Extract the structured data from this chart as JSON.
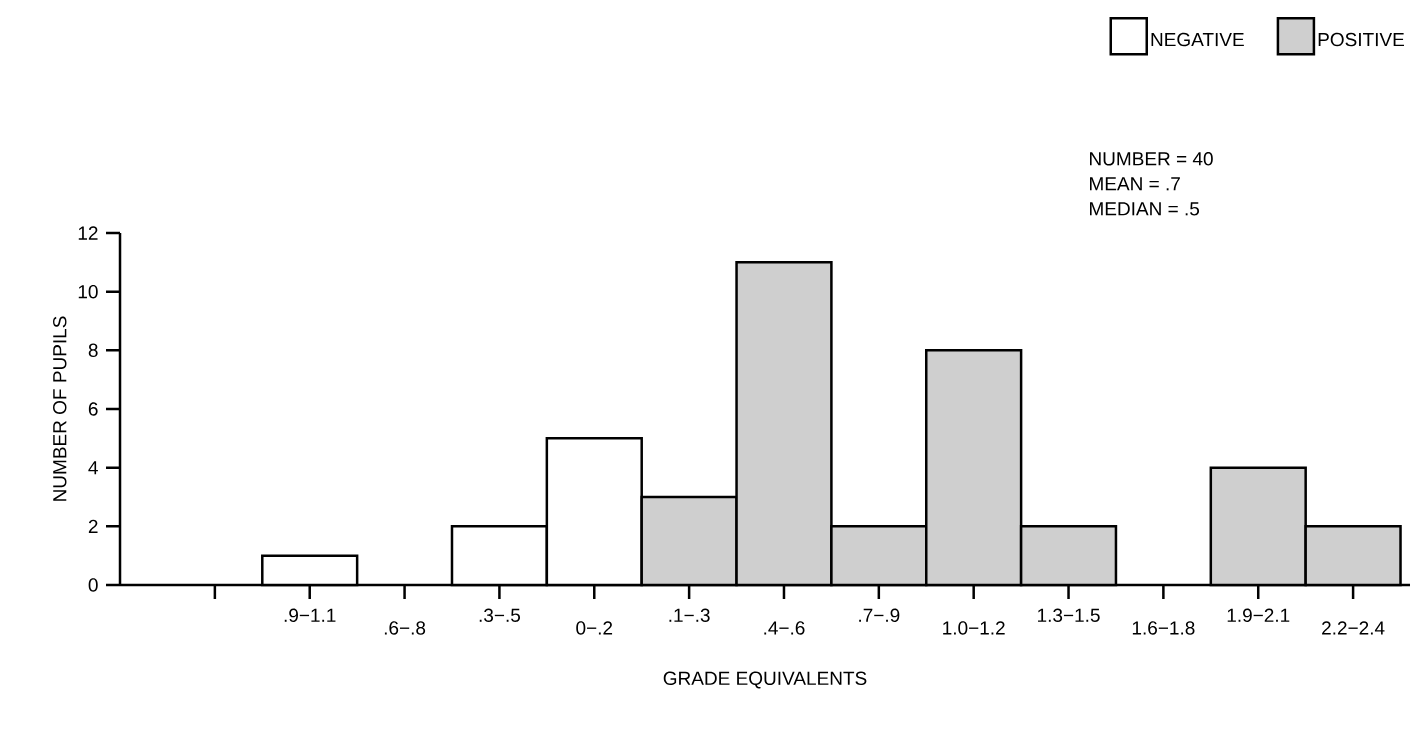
{
  "chart_data": {
    "type": "bar",
    "xlabel": "GRADE EQUIVALENTS",
    "ylabel": "NUMBER OF PUPILS",
    "categories": [
      null,
      ".9−1.1",
      ".6−.8",
      ".3−.5",
      "0−.2",
      ".1−.3",
      ".4−.6",
      ".7−.9",
      "1.0−1.2",
      "1.3−1.5",
      "1.6−1.8",
      "1.9−2.1",
      "2.2−2.4"
    ],
    "series": [
      {
        "name": "NEGATIVE",
        "color": "#ffffff",
        "values": [
          null,
          1,
          null,
          2,
          5,
          null,
          null,
          null,
          null,
          null,
          null,
          null,
          null
        ]
      },
      {
        "name": "POSITIVE",
        "color": "#cfcfcf",
        "values": [
          null,
          null,
          null,
          null,
          null,
          3,
          11,
          2,
          8,
          2,
          null,
          4,
          2
        ]
      }
    ],
    "ylim": [
      0,
      12
    ],
    "yticks": [
      0,
      2,
      4,
      6,
      8,
      10,
      12
    ],
    "annotations": [
      "NUMBER = 40",
      "MEAN = .7",
      "MEDIAN = .5"
    ],
    "legend": "top right",
    "grid": false
  }
}
